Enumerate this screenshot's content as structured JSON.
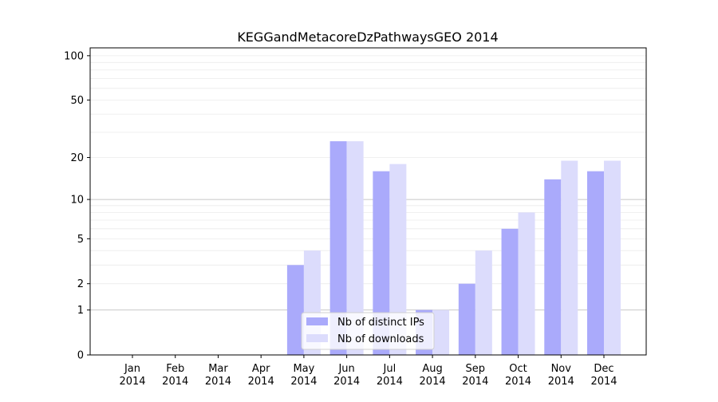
{
  "chart_data": {
    "type": "bar",
    "title": "KEGGandMetacoreDzPathwaysGEO 2014",
    "xlabel": "",
    "ylabel": "",
    "yscale": "symlog (log10(y+1))",
    "ylim": [
      0,
      113
    ],
    "yticks": [
      0,
      1,
      2,
      5,
      10,
      20,
      50,
      100
    ],
    "ytick_labels": [
      "0",
      "1",
      "2",
      "5",
      "10",
      "20",
      "50",
      "100"
    ],
    "categories": [
      [
        "Jan",
        "2014"
      ],
      [
        "Feb",
        "2014"
      ],
      [
        "Mar",
        "2014"
      ],
      [
        "Apr",
        "2014"
      ],
      [
        "May",
        "2014"
      ],
      [
        "Jun",
        "2014"
      ],
      [
        "Jul",
        "2014"
      ],
      [
        "Aug",
        "2014"
      ],
      [
        "Sep",
        "2014"
      ],
      [
        "Oct",
        "2014"
      ],
      [
        "Nov",
        "2014"
      ],
      [
        "Dec",
        "2014"
      ]
    ],
    "series": [
      {
        "name": "Nb of distinct IPs",
        "color": "#aaaafb",
        "values": [
          0,
          0,
          0,
          0,
          3,
          26,
          16,
          1,
          2,
          6,
          14,
          16
        ]
      },
      {
        "name": "Nb of downloads",
        "color": "#dcdcfc",
        "values": [
          0,
          0,
          0,
          0,
          4,
          26,
          18,
          1,
          4,
          8,
          19,
          19
        ]
      }
    ],
    "grid": true,
    "legend_position": "lower-center"
  }
}
